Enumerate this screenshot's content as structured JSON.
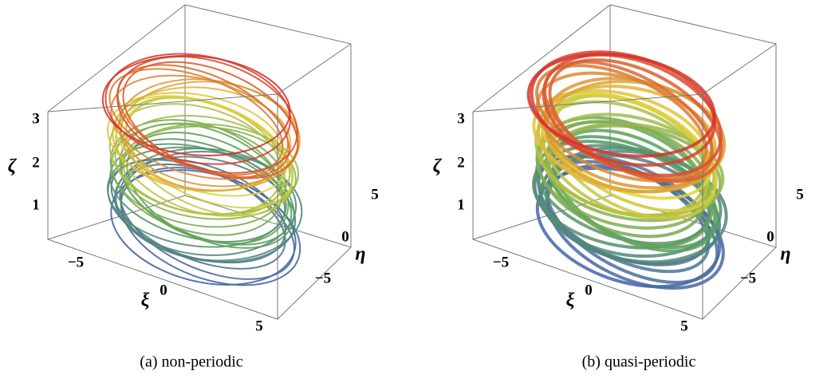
{
  "panels": [
    {
      "caption": "(a) non-periodic",
      "zeta": {
        "label": "ζ",
        "ticks": [
          "1",
          "2",
          "3"
        ]
      },
      "xi": {
        "label": "ξ",
        "ticks": [
          "−5",
          "0",
          "5"
        ]
      },
      "eta": {
        "label": "η",
        "ticks": [
          "−5",
          "0",
          "5"
        ]
      }
    },
    {
      "caption": "(b) quasi-periodic",
      "zeta": {
        "label": "ζ",
        "ticks": [
          "1",
          "2",
          "3"
        ]
      },
      "xi": {
        "label": "ξ",
        "ticks": [
          "−5",
          "0",
          "5"
        ]
      },
      "eta": {
        "label": "η",
        "ticks": [
          "−5",
          "0",
          "5"
        ]
      }
    }
  ]
}
